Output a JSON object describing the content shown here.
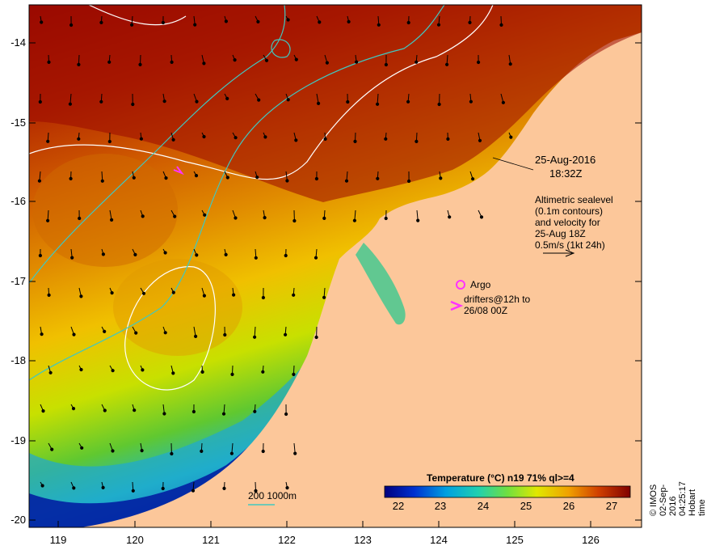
{
  "map": {
    "y_ticks": [
      "-14",
      "-15",
      "-16",
      "-17",
      "-18",
      "-19",
      "-20"
    ],
    "x_ticks": [
      "119",
      "120",
      "121",
      "122",
      "123",
      "124",
      "125",
      "126"
    ],
    "date_line1": "25-Aug-2016",
    "date_line2": "18:32Z",
    "alt_lines": [
      "Altimetric sealevel",
      "(0.1m contours)",
      "and velocity for",
      "25-Aug 18Z",
      "0.5m/s (1kt 24h)"
    ],
    "argo_label": "Argo",
    "drifter_label1": "drifters@12h to",
    "drifter_label2": "26/08 00Z",
    "depth_label": "200  1000m",
    "colorbar_title": "Temperature (°C) n19 71% ql>=4",
    "colorbar_ticks": [
      "22",
      "23",
      "24",
      "25",
      "26",
      "27"
    ],
    "credit": "© IMOS 02-Sep-2016 04:25:17 Hobart time",
    "colors": {
      "land": "#fcc79a",
      "hot": "#8b0000",
      "accent_magenta": "#ff33ff",
      "isobath": "#40c8c0"
    }
  }
}
